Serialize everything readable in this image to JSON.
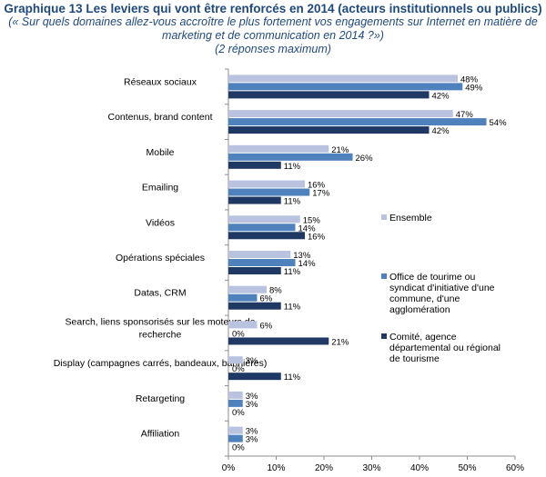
{
  "header": {
    "title": "Graphique 13 Les leviers qui vont être renforcés en 2014 (acteurs institutionnels ou publics)",
    "subtitle_lines": [
      "(« Sur quels domaines allez-vous accroître le plus fortement vos engagements sur Internet en matière de",
      "marketing et de communication en 2014 ?»)",
      "(2 réponses maximum)"
    ]
  },
  "chart_data": {
    "type": "bar",
    "orientation": "horizontal",
    "categories": [
      [
        "Réseaux sociaux"
      ],
      [
        "Contenus, brand content"
      ],
      [
        "Mobile"
      ],
      [
        "Emailing"
      ],
      [
        "Vidéos"
      ],
      [
        "Opérations spéciales"
      ],
      [
        "Datas, CRM"
      ],
      [
        "Search, liens sponsorisés sur les moteurs de",
        "recherche"
      ],
      [
        "Display (campagnes carrés, bandeaux, bannières)"
      ],
      [
        "Retargeting"
      ],
      [
        "Affiliation"
      ]
    ],
    "series": [
      {
        "name": "Ensemble",
        "color": "#b9c3df",
        "values": [
          48,
          47,
          21,
          16,
          15,
          13,
          8,
          6,
          3,
          3,
          3
        ]
      },
      {
        "name": "Office de tourime ou syndicat d'initiative d'une commune, d'une agglomération",
        "legend_lines": [
          "Office de tourime ou",
          "syndicat d'initiative d'une",
          "commune, d'une",
          "agglomération"
        ],
        "color": "#4f81bd",
        "values": [
          49,
          54,
          26,
          17,
          14,
          14,
          6,
          0,
          0,
          3,
          3
        ]
      },
      {
        "name": "Comité, agence départemental ou régional de tourisme",
        "legend_lines": [
          "Comité, agence",
          "départemental ou régional",
          "de tourisme"
        ],
        "color": "#1f3864",
        "values": [
          42,
          42,
          11,
          11,
          16,
          11,
          11,
          21,
          11,
          0,
          0
        ]
      }
    ],
    "value_suffix": "%",
    "x_ticks": [
      "0%",
      "10%",
      "20%",
      "30%",
      "40%",
      "50%",
      "60%"
    ],
    "xlim": [
      0,
      60
    ],
    "grid": false,
    "legend_position": "right"
  }
}
